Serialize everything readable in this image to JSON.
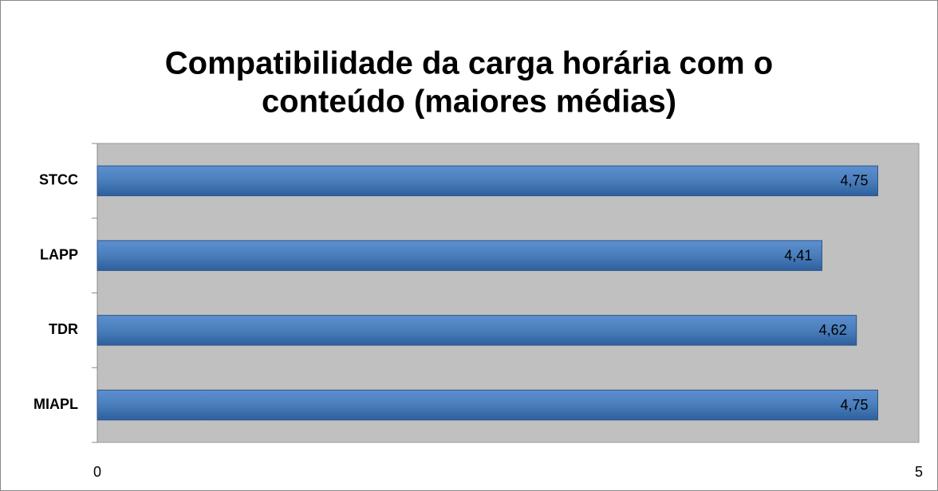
{
  "chart_data": {
    "type": "hbar",
    "title": [
      "Compatibilidade da carga horária com o",
      "conteúdo (maiores médias)"
    ],
    "categories": [
      "STCC",
      "LAPP",
      "TDR",
      "MIAPL"
    ],
    "values": [
      4.75,
      4.41,
      4.62,
      4.75
    ],
    "value_labels": [
      "4,75",
      "4,41",
      "4,62",
      "4,75"
    ],
    "color": "#4a7ebb",
    "xlim": [
      0,
      5
    ],
    "xticks": [
      0,
      5
    ],
    "grid": false
  }
}
